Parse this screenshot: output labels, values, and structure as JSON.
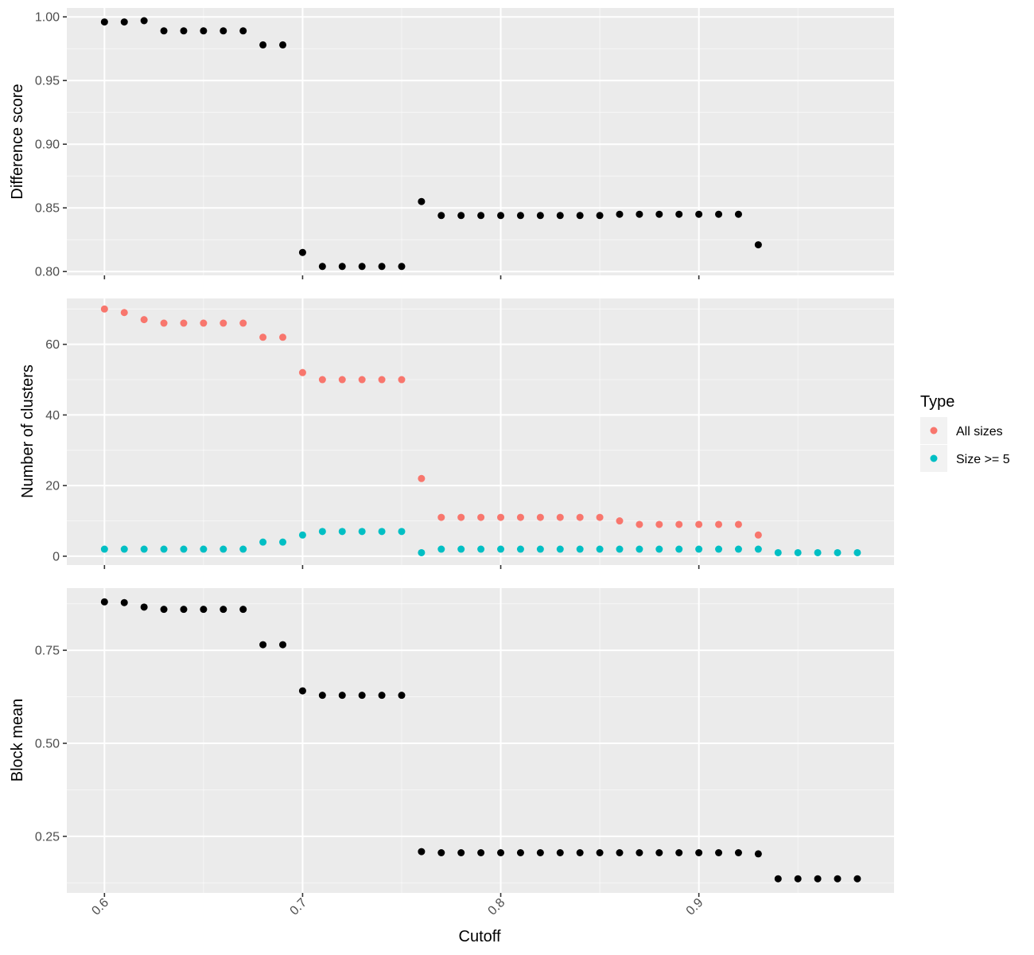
{
  "chart_data": [
    {
      "type": "scatter",
      "ylabel": "Difference score",
      "ylim": [
        0.797,
        1.007
      ],
      "yticks": [
        0.8,
        0.85,
        0.9,
        0.95,
        1.0
      ],
      "ytick_labels": [
        "0.80",
        "0.85",
        "0.90",
        "0.95",
        "1.00"
      ],
      "xlim": [
        0.581,
        0.9985
      ],
      "grid": true,
      "series": [
        {
          "color": "#000000",
          "x": [
            0.6,
            0.61,
            0.62,
            0.63,
            0.64,
            0.65,
            0.66,
            0.67,
            0.68,
            0.69,
            0.7,
            0.71,
            0.72,
            0.73,
            0.74,
            0.75,
            0.76,
            0.77,
            0.78,
            0.79,
            0.8,
            0.81,
            0.82,
            0.83,
            0.84,
            0.85,
            0.86,
            0.87,
            0.88,
            0.89,
            0.9,
            0.91,
            0.92,
            0.93
          ],
          "y": [
            0.996,
            0.996,
            0.997,
            0.989,
            0.989,
            0.989,
            0.989,
            0.989,
            0.978,
            0.978,
            0.815,
            0.804,
            0.804,
            0.804,
            0.804,
            0.804,
            0.855,
            0.844,
            0.844,
            0.844,
            0.844,
            0.844,
            0.844,
            0.844,
            0.844,
            0.844,
            0.845,
            0.845,
            0.845,
            0.845,
            0.845,
            0.845,
            0.845,
            0.821
          ]
        }
      ]
    },
    {
      "type": "scatter",
      "ylabel": "Number of clusters",
      "ylim": [
        -2.5,
        73
      ],
      "yticks": [
        0,
        20,
        40,
        60
      ],
      "ytick_labels": [
        "0",
        "20",
        "40",
        "60"
      ],
      "xlim": [
        0.581,
        0.9985
      ],
      "grid": true,
      "series": [
        {
          "name": "All sizes",
          "color": "#f8766d",
          "x": [
            0.6,
            0.61,
            0.62,
            0.63,
            0.64,
            0.65,
            0.66,
            0.67,
            0.68,
            0.69,
            0.7,
            0.71,
            0.72,
            0.73,
            0.74,
            0.75,
            0.76,
            0.77,
            0.78,
            0.79,
            0.8,
            0.81,
            0.82,
            0.83,
            0.84,
            0.85,
            0.86,
            0.87,
            0.88,
            0.89,
            0.9,
            0.91,
            0.92,
            0.93
          ],
          "y": [
            70,
            69,
            67,
            66,
            66,
            66,
            66,
            66,
            62,
            62,
            52,
            50,
            50,
            50,
            50,
            50,
            22,
            11,
            11,
            11,
            11,
            11,
            11,
            11,
            11,
            11,
            10,
            9,
            9,
            9,
            9,
            9,
            9,
            6
          ]
        },
        {
          "name": "Size >= 5",
          "color": "#00bfc4",
          "x": [
            0.6,
            0.61,
            0.62,
            0.63,
            0.64,
            0.65,
            0.66,
            0.67,
            0.68,
            0.69,
            0.7,
            0.71,
            0.72,
            0.73,
            0.74,
            0.75,
            0.76,
            0.77,
            0.78,
            0.79,
            0.8,
            0.81,
            0.82,
            0.83,
            0.84,
            0.85,
            0.86,
            0.87,
            0.88,
            0.89,
            0.9,
            0.91,
            0.92,
            0.93,
            0.94,
            0.95,
            0.96,
            0.97,
            0.98
          ],
          "y": [
            2,
            2,
            2,
            2,
            2,
            2,
            2,
            2,
            4,
            4,
            6,
            7,
            7,
            7,
            7,
            7,
            1,
            2,
            2,
            2,
            2,
            2,
            2,
            2,
            2,
            2,
            2,
            2,
            2,
            2,
            2,
            2,
            2,
            2,
            1,
            1,
            1,
            1,
            1
          ]
        }
      ]
    },
    {
      "type": "scatter",
      "ylabel": "Block mean",
      "xlabel": "Cutoff",
      "ylim": [
        0.098,
        0.917
      ],
      "yticks": [
        0.25,
        0.5,
        0.75
      ],
      "ytick_labels": [
        "0.25",
        "0.50",
        "0.75"
      ],
      "xlim": [
        0.581,
        0.9985
      ],
      "xticks": [
        0.6,
        0.7,
        0.8,
        0.9
      ],
      "xtick_labels": [
        "0.6",
        "0.7",
        "0.8",
        "0.9"
      ],
      "grid": true,
      "series": [
        {
          "color": "#000000",
          "x": [
            0.6,
            0.61,
            0.62,
            0.63,
            0.64,
            0.65,
            0.66,
            0.67,
            0.68,
            0.69,
            0.7,
            0.71,
            0.72,
            0.73,
            0.74,
            0.75,
            0.76,
            0.77,
            0.78,
            0.79,
            0.8,
            0.81,
            0.82,
            0.83,
            0.84,
            0.85,
            0.86,
            0.87,
            0.88,
            0.89,
            0.9,
            0.91,
            0.92,
            0.93,
            0.94,
            0.95,
            0.96,
            0.97,
            0.98
          ],
          "y": [
            0.88,
            0.878,
            0.866,
            0.86,
            0.86,
            0.86,
            0.86,
            0.86,
            0.765,
            0.765,
            0.641,
            0.629,
            0.629,
            0.629,
            0.629,
            0.629,
            0.209,
            0.206,
            0.206,
            0.206,
            0.206,
            0.206,
            0.206,
            0.206,
            0.206,
            0.206,
            0.206,
            0.206,
            0.206,
            0.206,
            0.206,
            0.206,
            0.206,
            0.203,
            0.136,
            0.136,
            0.136,
            0.136,
            0.136
          ]
        }
      ]
    }
  ],
  "legend": {
    "title": "Type",
    "placement": "right",
    "entries": [
      {
        "label": "All sizes",
        "color": "#f8766d"
      },
      {
        "label": "Size >= 5",
        "color": "#00bfc4"
      }
    ]
  }
}
